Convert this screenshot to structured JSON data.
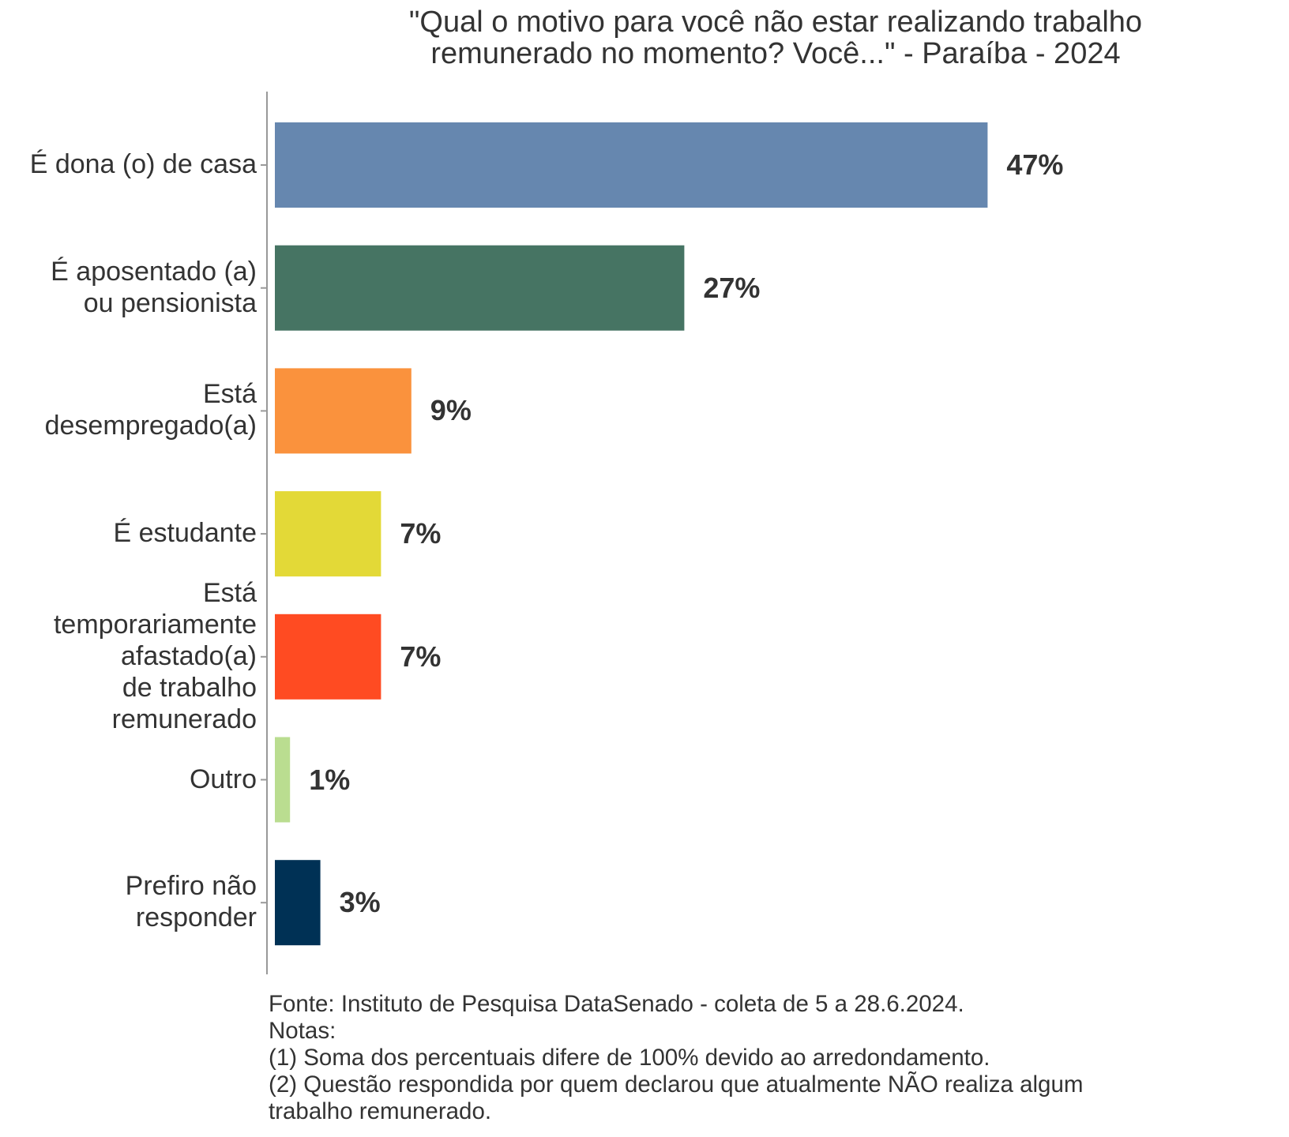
{
  "title": {
    "lines": [
      "\"Qual o motivo para você não estar realizando trabalho",
      "remunerado no momento? Você...\" - Paraíba - 2024"
    ]
  },
  "chart_data": {
    "type": "bar",
    "orientation": "horizontal",
    "title": "\"Qual o motivo para você não estar realizando trabalho remunerado no momento? Você...\" - Paraíba - 2024",
    "xlabel": "",
    "ylabel": "",
    "xlim": [
      0,
      50
    ],
    "grid": false,
    "categories": [
      [
        "É dona (o) de casa"
      ],
      [
        "É aposentado (a)",
        "ou pensionista"
      ],
      [
        "Está",
        "desempregado(a)"
      ],
      [
        "É estudante"
      ],
      [
        "Está",
        "temporariamente",
        "afastado(a)",
        "de trabalho",
        "remunerado"
      ],
      [
        "Outro"
      ],
      [
        "Prefiro não",
        "responder"
      ]
    ],
    "values": [
      47,
      27,
      9,
      7,
      7,
      1,
      3
    ],
    "labels": [
      "47%",
      "27%",
      "9%",
      "7%",
      "7%",
      "1%",
      "3%"
    ],
    "colors": [
      "#6687AF",
      "#467463",
      "#FA923D",
      "#E3D937",
      "#FF4B22",
      "#BADD90",
      "#003155"
    ]
  },
  "footer": {
    "lines": [
      "Fonte: Instituto de Pesquisa DataSenado - coleta de 5 a 28.6.2024.",
      "Notas:",
      "(1) Soma dos percentuais difere de 100% devido ao arredondamento.",
      "(2) Questão respondida por quem declarou que atualmente NÃO realiza algum",
      "trabalho remunerado."
    ]
  }
}
